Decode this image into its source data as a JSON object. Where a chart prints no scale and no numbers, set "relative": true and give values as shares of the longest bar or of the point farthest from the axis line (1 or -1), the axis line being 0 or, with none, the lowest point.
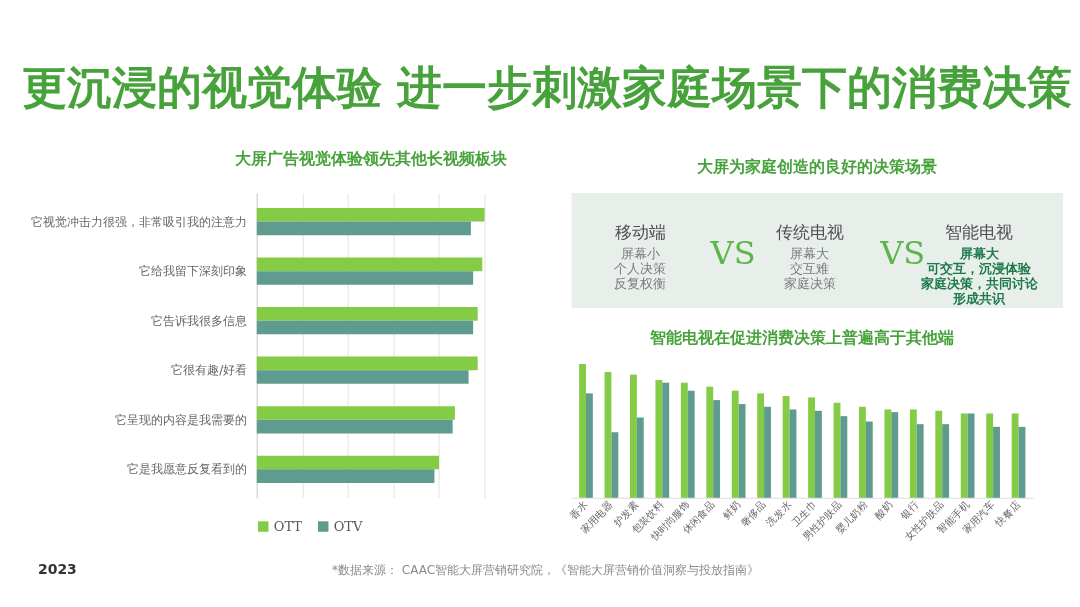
{
  "chart_data": [
    {
      "type": "bar",
      "orientation": "horizontal",
      "title": "更沉浸的视觉体验 进一步刺激家庭场景下的消费决策",
      "subtitle": "大屏广告视觉体验领先其他长视频板块",
      "categories": [
        "它视觉冲击力很强，非常吸引我的注意力",
        "它给我留下深刻印象",
        "它告诉我很多信息",
        "它很有趣/好看",
        "它呈现的内容是我需要的",
        "它是我愿意反复看到的"
      ],
      "series": [
        {
          "name": "OTT",
          "color": "#84cc45",
          "values": [
            1,
            0.99,
            0.97,
            0.97,
            0.87,
            0.8
          ]
        },
        {
          "name": "OTV",
          "color": "#5f9b8f",
          "values": [
            0.94,
            0.95,
            0.95,
            0.93,
            0.86,
            0.78
          ]
        }
      ],
      "relative": true,
      "grid": "x",
      "legend": "bottom",
      "annotations": [
        "2023",
        "*数据来源： CAAC智能大屏营销研究院，《智能大屏营销价值洞察与投放指南》"
      ]
    },
    {
      "type": "other",
      "title": "大屏为家庭创造的良好的决策场景",
      "annotations": [
        "移动端",
        "屏幕小",
        "个人决策",
        "反复权衡",
        "VS",
        "传统电视",
        "屏幕大",
        "交互难",
        "家庭决策",
        "VS",
        "智能电视",
        "屏幕大",
        "可交互，沉浸体验",
        "家庭决策，共同讨论",
        "形成共识"
      ]
    },
    {
      "type": "bar",
      "title": "智能电视在促进消费决策上普遍高于其他端",
      "categories": [
        "香水",
        "家用电器",
        "护发素",
        "包装饮料",
        "快时尚服饰",
        "休闲食品",
        "鲜奶",
        "奢侈品",
        "洗发水",
        "卫生巾",
        "男性护肤品",
        "婴儿奶粉",
        "酸奶",
        "银行",
        "女性护肤品",
        "智能手机",
        "家用汽车",
        "快餐店"
      ],
      "series": [
        {
          "color": "#84cc45",
          "values": [
            1,
            0.94,
            0.92,
            0.88,
            0.86,
            0.83,
            0.8,
            0.78,
            0.76,
            0.75,
            0.71,
            0.68,
            0.66,
            0.66,
            0.65,
            0.63,
            0.63,
            0.63
          ]
        },
        {
          "color": "#5f9b8f",
          "values": [
            0.78,
            0.49,
            0.6,
            0.86,
            0.8,
            0.73,
            0.7,
            0.68,
            0.66,
            0.65,
            0.61,
            0.57,
            0.64,
            0.55,
            0.55,
            0.63,
            0.53,
            0.53
          ]
        }
      ],
      "relative": true
    }
  ]
}
